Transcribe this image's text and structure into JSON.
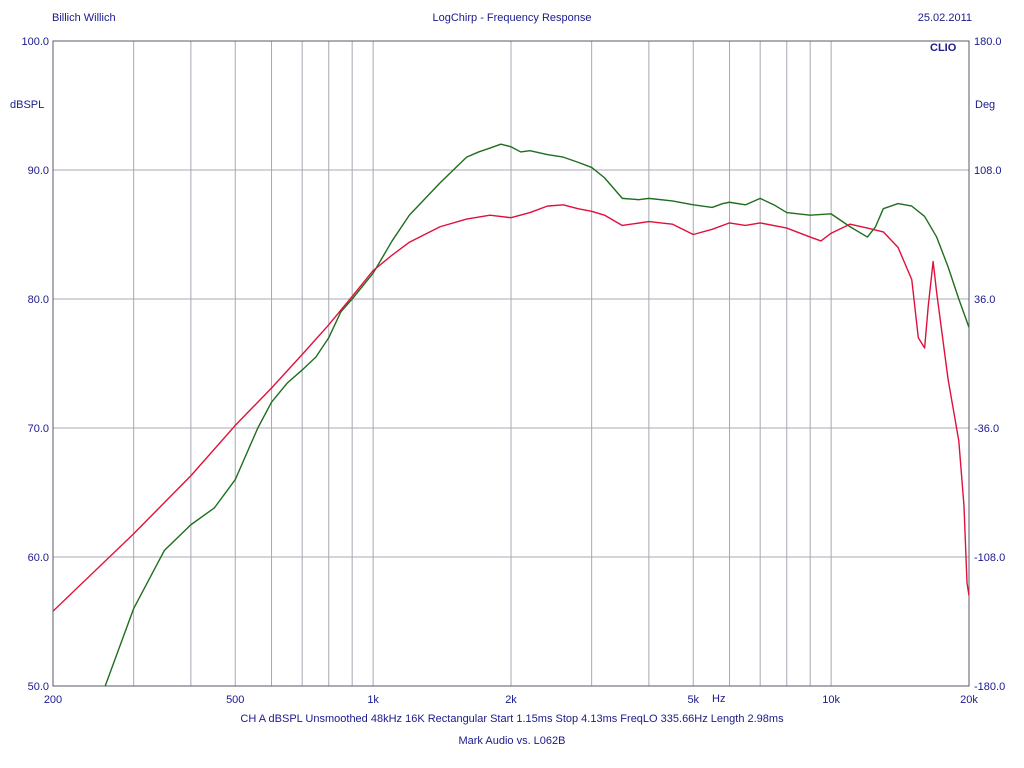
{
  "header": {
    "left": "Billich Willich",
    "title": "LogChirp - Frequency Response",
    "date": "25.02.2011"
  },
  "footer": {
    "params": "CH A   dBSPL   Unsmoothed   48kHz   16K   Rectangular   Start 1.15ms    Stop 4.13ms    FreqLO 335.66Hz    Length 2.98ms",
    "subtitle": "Mark Audio vs. L062B"
  },
  "logo": "CLIO",
  "chart_data": {
    "type": "line",
    "title": "LogChirp - Frequency Response",
    "xlabel": "Hz",
    "ylabel": "dBSPL",
    "y2label": "Deg",
    "xscale": "log",
    "xlim": [
      200,
      20000
    ],
    "ylim": [
      50,
      100
    ],
    "y2lim": [
      -180,
      180
    ],
    "grid": true,
    "x_tick_labels": [
      {
        "value": 200,
        "label": "200"
      },
      {
        "value": 500,
        "label": "500"
      },
      {
        "value": 1000,
        "label": "1k"
      },
      {
        "value": 2000,
        "label": "2k"
      },
      {
        "value": 5000,
        "label": "5k"
      },
      {
        "value": 10000,
        "label": "10k"
      },
      {
        "value": 20000,
        "label": "20k"
      }
    ],
    "y_ticks": [
      "100.0",
      "90.0",
      "80.0",
      "70.0",
      "60.0",
      "50.0"
    ],
    "y2_ticks": [
      "180.0",
      "108.0",
      "36.0",
      "-36.0",
      "-108.0",
      "-180.0"
    ],
    "series": [
      {
        "color": "#1f6e1f",
        "x": [
          260,
          300,
          350,
          400,
          450,
          500,
          560,
          600,
          650,
          700,
          750,
          800,
          850,
          900,
          1000,
          1100,
          1200,
          1400,
          1600,
          1700,
          1800,
          1900,
          2000,
          2100,
          2200,
          2400,
          2600,
          2800,
          3000,
          3200,
          3500,
          3800,
          4000,
          4500,
          5000,
          5500,
          5800,
          6000,
          6500,
          7000,
          7500,
          8000,
          9000,
          10000,
          11000,
          12000,
          12500,
          13000,
          14000,
          15000,
          16000,
          17000,
          18000,
          19000,
          20000
        ],
        "values": [
          50.0,
          56.0,
          60.5,
          62.5,
          63.8,
          66.0,
          70.0,
          72.0,
          73.5,
          74.5,
          75.5,
          77.0,
          79.0,
          80.0,
          82.0,
          84.5,
          86.5,
          89.0,
          91.0,
          91.4,
          91.7,
          92.0,
          91.8,
          91.4,
          91.5,
          91.2,
          91.0,
          90.6,
          90.2,
          89.4,
          87.8,
          87.7,
          87.8,
          87.6,
          87.3,
          87.1,
          87.4,
          87.5,
          87.3,
          87.8,
          87.3,
          86.7,
          86.5,
          86.6,
          85.6,
          84.8,
          85.6,
          87.0,
          87.4,
          87.2,
          86.4,
          84.8,
          82.5,
          80.0,
          77.8
        ]
      },
      {
        "color": "#e0103c",
        "x": [
          200,
          300,
          400,
          500,
          600,
          700,
          800,
          900,
          1000,
          1100,
          1200,
          1400,
          1600,
          1800,
          2000,
          2200,
          2400,
          2600,
          2800,
          3000,
          3200,
          3500,
          4000,
          4500,
          5000,
          5500,
          6000,
          6500,
          7000,
          8000,
          9000,
          9500,
          10000,
          11000,
          12000,
          13000,
          14000,
          15000,
          15500,
          16000,
          16300,
          16700,
          17000,
          18000,
          19000,
          19500,
          19800,
          20000
        ],
        "values": [
          55.8,
          61.8,
          66.3,
          70.2,
          73.1,
          75.7,
          78.0,
          80.2,
          82.2,
          83.4,
          84.4,
          85.6,
          86.2,
          86.5,
          86.3,
          86.7,
          87.2,
          87.3,
          87.0,
          86.8,
          86.5,
          85.7,
          86.0,
          85.8,
          85.0,
          85.4,
          85.9,
          85.7,
          85.9,
          85.5,
          84.8,
          84.5,
          85.1,
          85.8,
          85.5,
          85.2,
          84.0,
          81.5,
          77.0,
          76.2,
          79.5,
          82.9,
          80.5,
          73.8,
          69.0,
          64.0,
          58.0,
          57.0
        ]
      }
    ]
  }
}
